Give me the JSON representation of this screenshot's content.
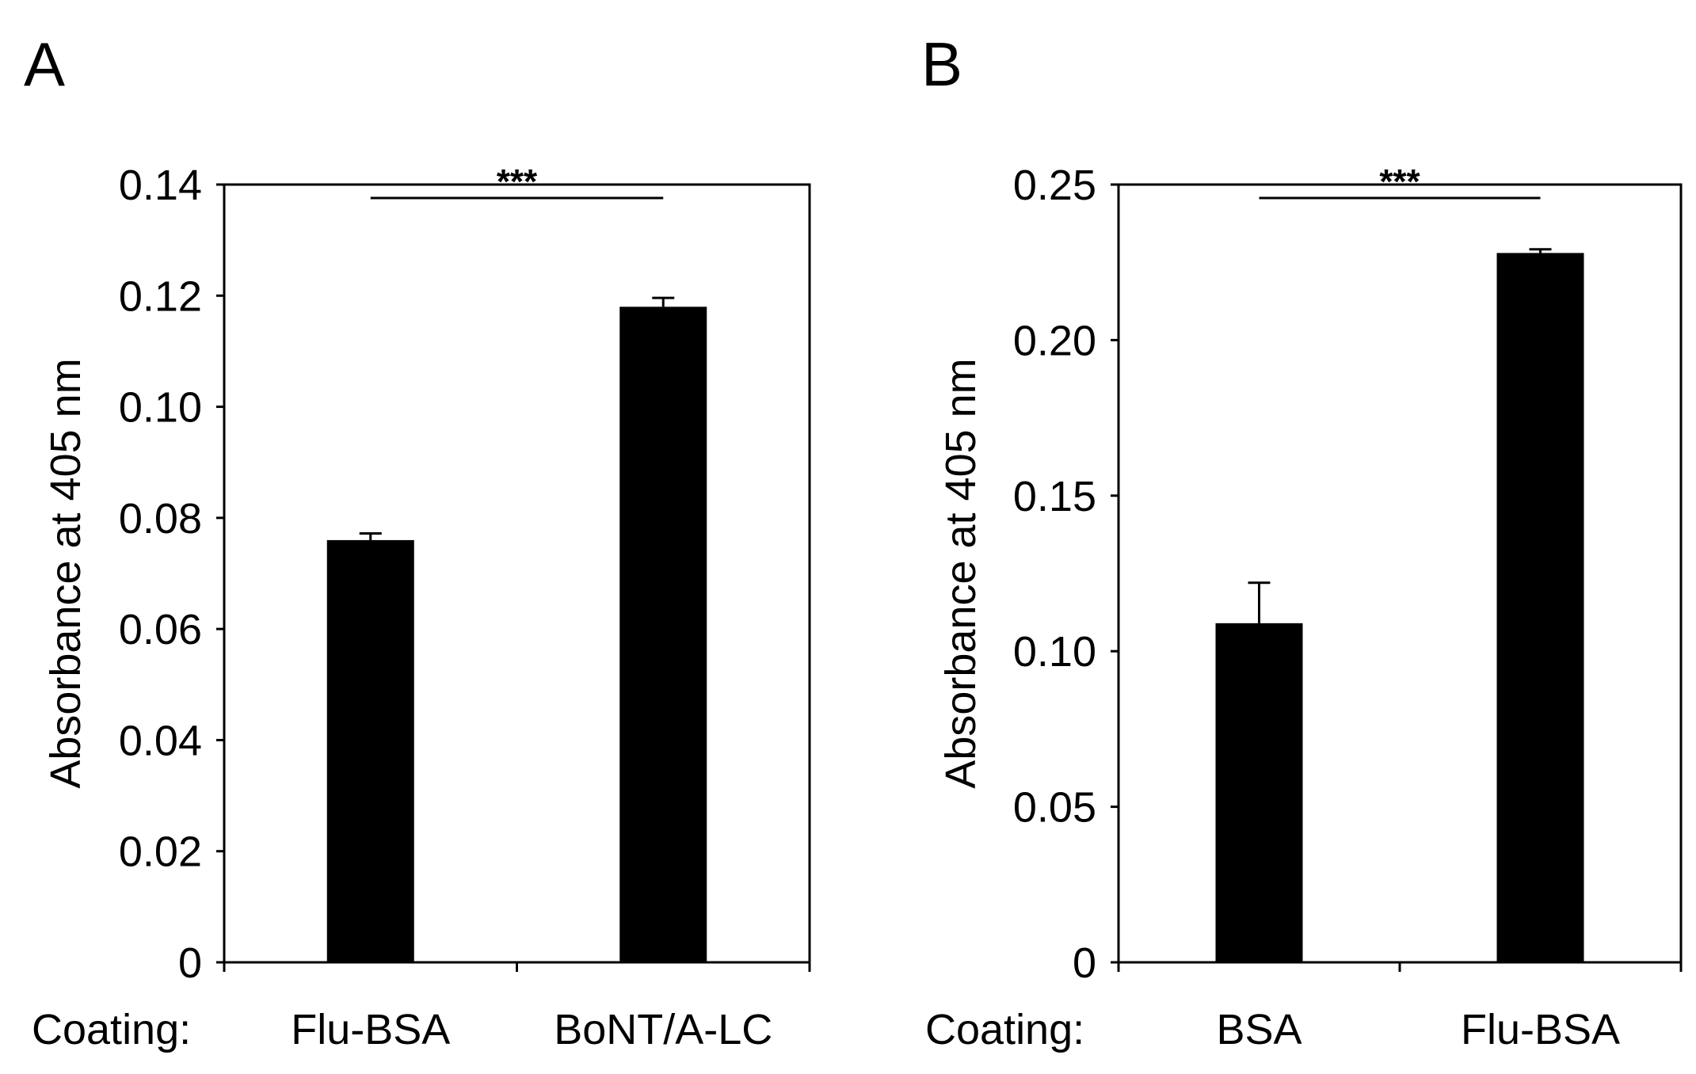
{
  "chart_data": [
    {
      "type": "bar",
      "panel": "A",
      "ylabel": "Absorbance at 405 nm",
      "xlabel_prefix": "Coating:",
      "categories": [
        "Flu-BSA",
        "BoNT/A-LC"
      ],
      "values": [
        0.076,
        0.118
      ],
      "errors": [
        0.0012,
        0.0016
      ],
      "ylim": [
        0,
        0.14
      ],
      "yticks": [
        0,
        0.02,
        0.04,
        0.06,
        0.08,
        0.1,
        0.12,
        0.14
      ],
      "ytick_labels": [
        "0",
        "0.02",
        "0.04",
        "0.06",
        "0.08",
        "0.10",
        "0.12",
        "0.14"
      ],
      "significance": {
        "label": "***",
        "between": [
          0,
          1
        ]
      },
      "bar_color": "#000000",
      "grid": false
    },
    {
      "type": "bar",
      "panel": "B",
      "ylabel": "Absorbance at 405 nm",
      "xlabel_prefix": "Coating:",
      "categories": [
        "BSA",
        "Flu-BSA"
      ],
      "values": [
        0.109,
        0.228
      ],
      "errors": [
        0.013,
        0.0012
      ],
      "ylim": [
        0,
        0.25
      ],
      "yticks": [
        0,
        0.05,
        0.1,
        0.15,
        0.2,
        0.25
      ],
      "ytick_labels": [
        "0",
        "0.05",
        "0.10",
        "0.15",
        "0.20",
        "0.25"
      ],
      "significance": {
        "label": "***",
        "between": [
          0,
          1
        ]
      },
      "bar_color": "#000000",
      "grid": false
    }
  ]
}
